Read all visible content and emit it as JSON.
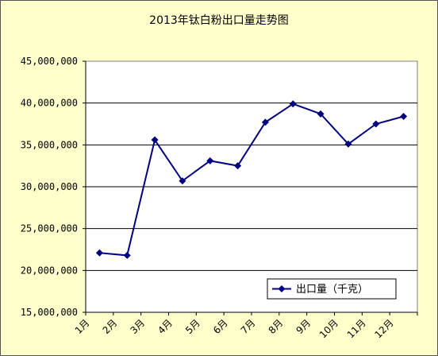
{
  "chart_data": {
    "type": "line",
    "title": "2013年钛白粉出口量走势图",
    "xlabel": "",
    "ylabel": "",
    "categories": [
      "1月",
      "2月",
      "3月",
      "4月",
      "5月",
      "6月",
      "7月",
      "8月",
      "9月",
      "10月",
      "11月",
      "12月"
    ],
    "series": [
      {
        "name": "出口量（千克）",
        "values": [
          22100000,
          21800000,
          35600000,
          30700000,
          33100000,
          32500000,
          37700000,
          39900000,
          38700000,
          35100000,
          37500000,
          38400000
        ],
        "color": "#000080",
        "marker": "diamond"
      }
    ],
    "ylim": [
      15000000,
      45000000
    ],
    "yticks": [
      "15,000,000",
      "20,000,000",
      "25,000,000",
      "30,000,000",
      "35,000,000",
      "40,000,000",
      "45,000,000"
    ],
    "grid": "horizontal",
    "legend_position": "bottom-right",
    "background": "#ffffcc",
    "plot_background": "#ffffff"
  }
}
